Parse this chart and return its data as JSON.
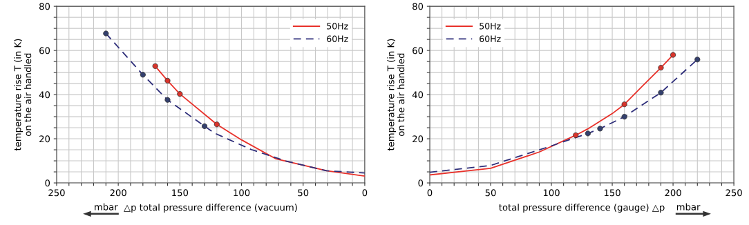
{
  "chart_data": [
    {
      "type": "line",
      "ylabel": "temperature rise T (in K)\non the air handled",
      "xlabel": "△p total pressure difference (vacuum)",
      "annotations": [
        "mbar"
      ],
      "xlim": [
        250,
        0
      ],
      "ylim": [
        0,
        80
      ],
      "xticks": [
        250,
        {
          "value": 240,
          "label": null
        },
        {
          "value": 230,
          "label": null
        },
        {
          "value": 220,
          "label": null
        },
        {
          "value": 210,
          "label": null
        },
        200,
        {
          "value": 190,
          "label": null
        },
        {
          "value": 180,
          "label": null
        },
        {
          "value": 170,
          "label": null
        },
        {
          "value": 160,
          "label": null
        },
        150,
        {
          "value": 140,
          "label": null
        },
        {
          "value": 130,
          "label": null
        },
        {
          "value": 120,
          "label": null
        },
        {
          "value": 110,
          "label": null
        },
        100,
        {
          "value": 90,
          "label": null
        },
        {
          "value": 80,
          "label": null
        },
        {
          "value": 70,
          "label": null
        },
        {
          "value": 60,
          "label": null
        },
        50,
        {
          "value": 40,
          "label": null
        },
        {
          "value": 30,
          "label": null
        },
        {
          "value": 20,
          "label": null
        },
        {
          "value": 10,
          "label": null
        },
        0
      ],
      "yticks": [
        0,
        {
          "value": 5,
          "label": null
        },
        {
          "value": 10,
          "label": null
        },
        {
          "value": 15,
          "label": null
        },
        20,
        {
          "value": 25,
          "label": null
        },
        {
          "value": 30,
          "label": null
        },
        {
          "value": 35,
          "label": null
        },
        40,
        {
          "value": 45,
          "label": null
        },
        {
          "value": 50,
          "label": null
        },
        {
          "value": 55,
          "label": null
        },
        60,
        {
          "value": 65,
          "label": null
        },
        {
          "value": 70,
          "label": null
        },
        {
          "value": 75,
          "label": null
        },
        80
      ],
      "grid": true,
      "legend": "top right",
      "series": [
        {
          "name": "50Hz",
          "line_style": "solid",
          "color": "#e8312a",
          "x": [
            170,
            160,
            150,
            120,
            100,
            72,
            31,
            0
          ],
          "values": [
            52.9,
            46.3,
            40.3,
            26.5,
            19.5,
            10.9,
            5.5,
            3.1
          ]
        },
        {
          "name": "60Hz",
          "line_style": "dashed",
          "color": "#2e2e7a",
          "x": [
            210,
            180,
            160,
            130,
            122,
            92,
            64,
            31,
            0
          ],
          "values": [
            67.7,
            49,
            37.6,
            25.7,
            22.6,
            15.1,
            9.9,
            5.5,
            4.5
          ]
        },
        {
          "type": "scatter",
          "color": "#d9342b",
          "x": [
            170,
            160,
            150,
            120
          ],
          "values": [
            52.9,
            46.3,
            40.3,
            26.5
          ]
        },
        {
          "type": "scatter",
          "color": "#34406e",
          "x": [
            210,
            180,
            160,
            130
          ],
          "values": [
            67.7,
            49,
            37.6,
            25.7
          ]
        }
      ]
    },
    {
      "type": "line",
      "ylabel": "temperature rise T (in K)\non the air handled",
      "xlabel": "total pressure difference (gauge) △p",
      "annotations": [
        "mbar"
      ],
      "xlim": [
        0,
        250
      ],
      "ylim": [
        0,
        80
      ],
      "xticks": [
        0,
        {
          "value": 10,
          "label": null
        },
        {
          "value": 20,
          "label": null
        },
        {
          "value": 30,
          "label": null
        },
        {
          "value": 40,
          "label": null
        },
        50,
        {
          "value": 60,
          "label": null
        },
        {
          "value": 70,
          "label": null
        },
        {
          "value": 80,
          "label": null
        },
        {
          "value": 90,
          "label": null
        },
        100,
        {
          "value": 110,
          "label": null
        },
        {
          "value": 120,
          "label": null
        },
        {
          "value": 130,
          "label": null
        },
        {
          "value": 140,
          "label": null
        },
        150,
        {
          "value": 160,
          "label": null
        },
        {
          "value": 170,
          "label": null
        },
        {
          "value": 180,
          "label": null
        },
        {
          "value": 190,
          "label": null
        },
        200,
        {
          "value": 210,
          "label": null
        },
        {
          "value": 220,
          "label": null
        },
        {
          "value": 230,
          "label": null
        },
        {
          "value": 240,
          "label": null
        },
        250
      ],
      "yticks": [
        0,
        {
          "value": 5,
          "label": null
        },
        {
          "value": 10,
          "label": null
        },
        {
          "value": 15,
          "label": null
        },
        20,
        {
          "value": 25,
          "label": null
        },
        {
          "value": 30,
          "label": null
        },
        {
          "value": 35,
          "label": null
        },
        40,
        {
          "value": 45,
          "label": null
        },
        {
          "value": 50,
          "label": null
        },
        {
          "value": 55,
          "label": null
        },
        60,
        {
          "value": 65,
          "label": null
        },
        {
          "value": 70,
          "label": null
        },
        {
          "value": 75,
          "label": null
        },
        80
      ],
      "grid": true,
      "legend": "top left",
      "series": [
        {
          "name": "50Hz",
          "line_style": "solid",
          "color": "#e8312a",
          "x": [
            0,
            50,
            90,
            120,
            130,
            150,
            160,
            175,
            190,
            200
          ],
          "values": [
            3.6,
            6.6,
            14,
            21.6,
            24.5,
            31.4,
            35.6,
            44,
            52.2,
            58
          ]
        },
        {
          "name": "60Hz",
          "line_style": "dashed",
          "color": "#2e2e7a",
          "x": [
            0,
            50,
            99,
            130,
            140,
            160,
            190,
            220
          ],
          "values": [
            4.8,
            7.9,
            16.6,
            22.4,
            24.6,
            30,
            40.9,
            55.9
          ]
        },
        {
          "type": "scatter",
          "color": "#d9342b",
          "x": [
            120,
            160,
            190,
            200
          ],
          "values": [
            21.6,
            35.6,
            52.2,
            58
          ]
        },
        {
          "type": "scatter",
          "color": "#34406e",
          "x": [
            130,
            140,
            160,
            190,
            220
          ],
          "values": [
            22.4,
            24.6,
            30,
            40.9,
            55.9
          ]
        }
      ]
    }
  ]
}
